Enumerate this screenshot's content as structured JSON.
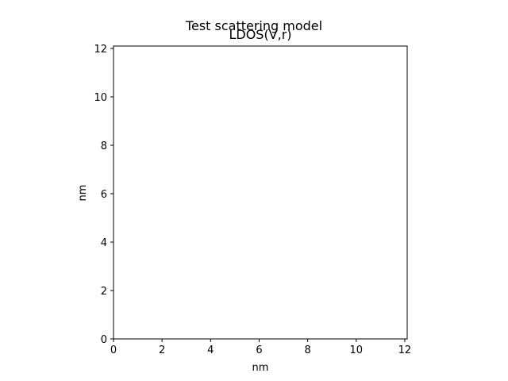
{
  "figure": {
    "suptitle": "Test scattering model"
  },
  "chart_data": {
    "type": "heatmap",
    "title": "LDOS(V,r)",
    "xlabel": "nm",
    "ylabel": "nm",
    "xlim": [
      0,
      12.1
    ],
    "ylim": [
      0,
      12.1
    ],
    "x_ticks": [
      0,
      2,
      4,
      6,
      8,
      10,
      12
    ],
    "y_ticks": [
      0,
      2,
      4,
      6,
      8,
      10,
      12
    ],
    "values": [],
    "grid": false,
    "legend": "none",
    "colors": {
      "axes_face": "#ffffff",
      "spine": "#000000",
      "text": "#000000"
    }
  }
}
